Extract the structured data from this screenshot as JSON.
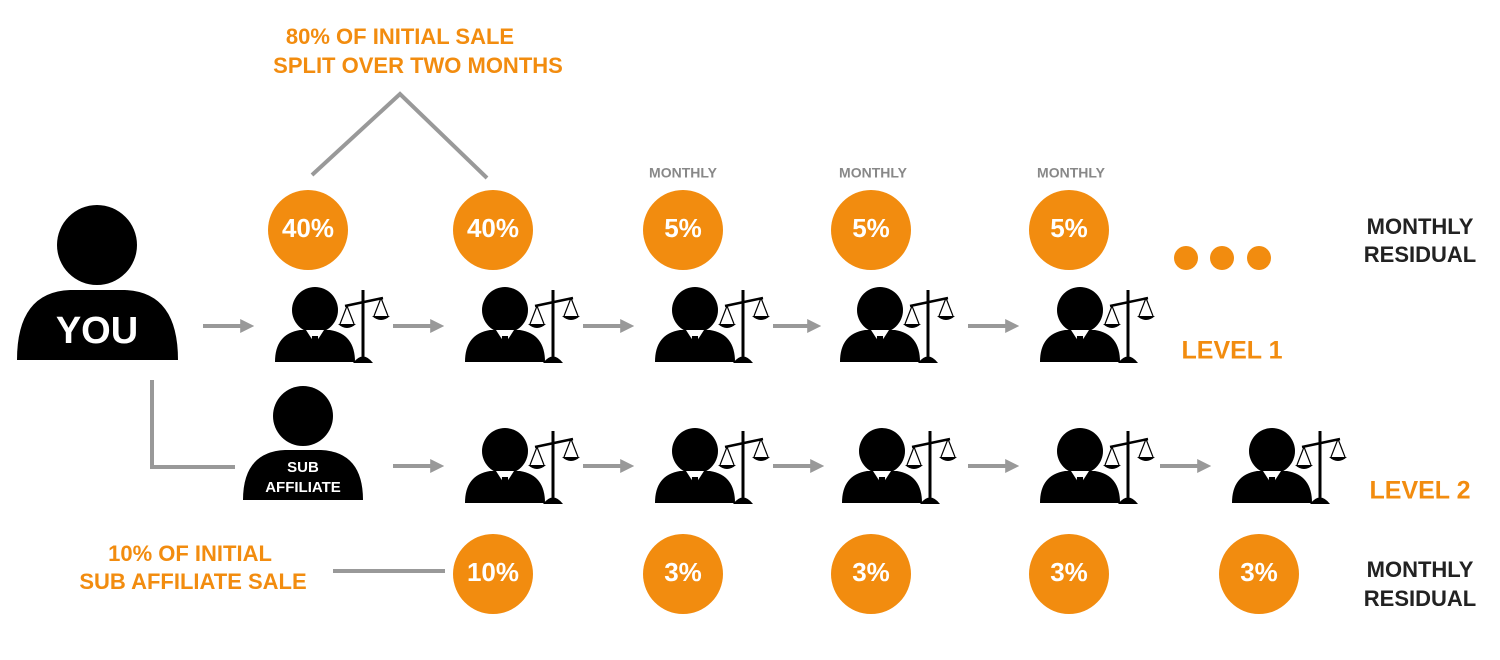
{
  "top_note": [
    "80% OF INITIAL SALE",
    "SPLIT OVER TWO MONTHS"
  ],
  "you": "YOU",
  "sub_affiliate": [
    "SUB",
    "AFFILIATE"
  ],
  "level_1": {
    "label": "LEVEL 1",
    "rates": [
      "40%",
      "40%",
      "5%",
      "5%",
      "5%"
    ],
    "rate_notes": [
      "MONTHLY",
      "MONTHLY",
      "MONTHLY"
    ],
    "side_note": [
      "MONTHLY",
      "RESIDUAL"
    ]
  },
  "level_2": {
    "label": "LEVEL 2",
    "rates": [
      "10%",
      "3%",
      "3%",
      "3%",
      "3%"
    ],
    "note": [
      "10% OF INITIAL",
      "SUB AFFILIATE SALE"
    ],
    "side_note": [
      "MONTHLY",
      "RESIDUAL"
    ]
  }
}
